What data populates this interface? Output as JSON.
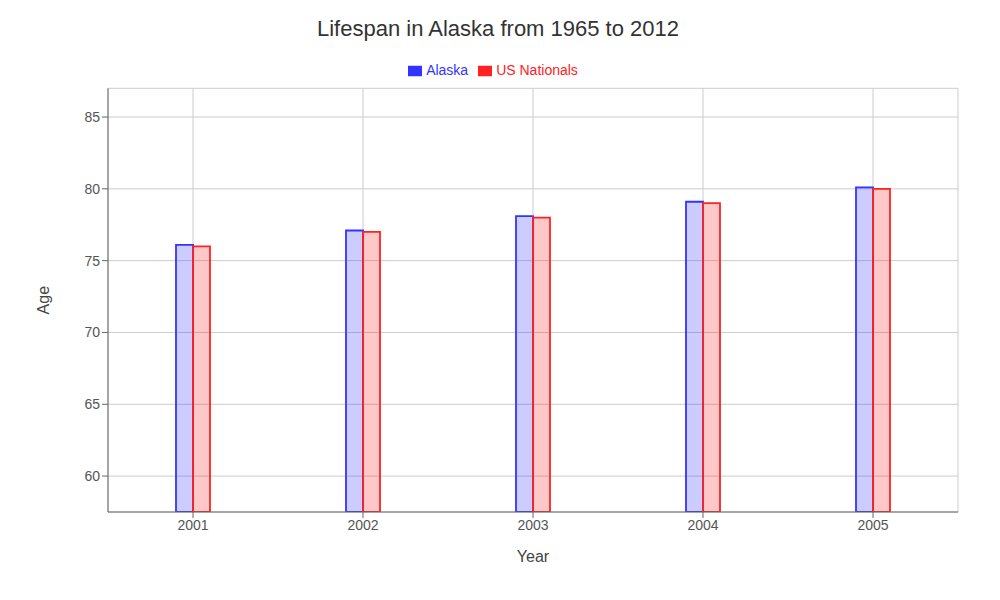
{
  "chart_data": {
    "type": "bar",
    "title": "Lifespan in Alaska from 1965 to 2012",
    "x_label": "Year",
    "y_label": "Age",
    "categories": [
      "2001",
      "2002",
      "2003",
      "2004",
      "2005"
    ],
    "series": [
      {
        "name": "Alaska",
        "color": "#3333ff",
        "values": [
          76.1,
          77.1,
          78.1,
          79.1,
          80.1
        ]
      },
      {
        "name": "US Nationals",
        "color": "#ff2222",
        "values": [
          76.0,
          77.0,
          78.0,
          79.0,
          80.0
        ]
      }
    ],
    "ylim": [
      57.5,
      87
    ],
    "yticks": [
      60,
      65,
      70,
      75,
      80,
      85
    ],
    "grid": true,
    "legend": "top"
  }
}
